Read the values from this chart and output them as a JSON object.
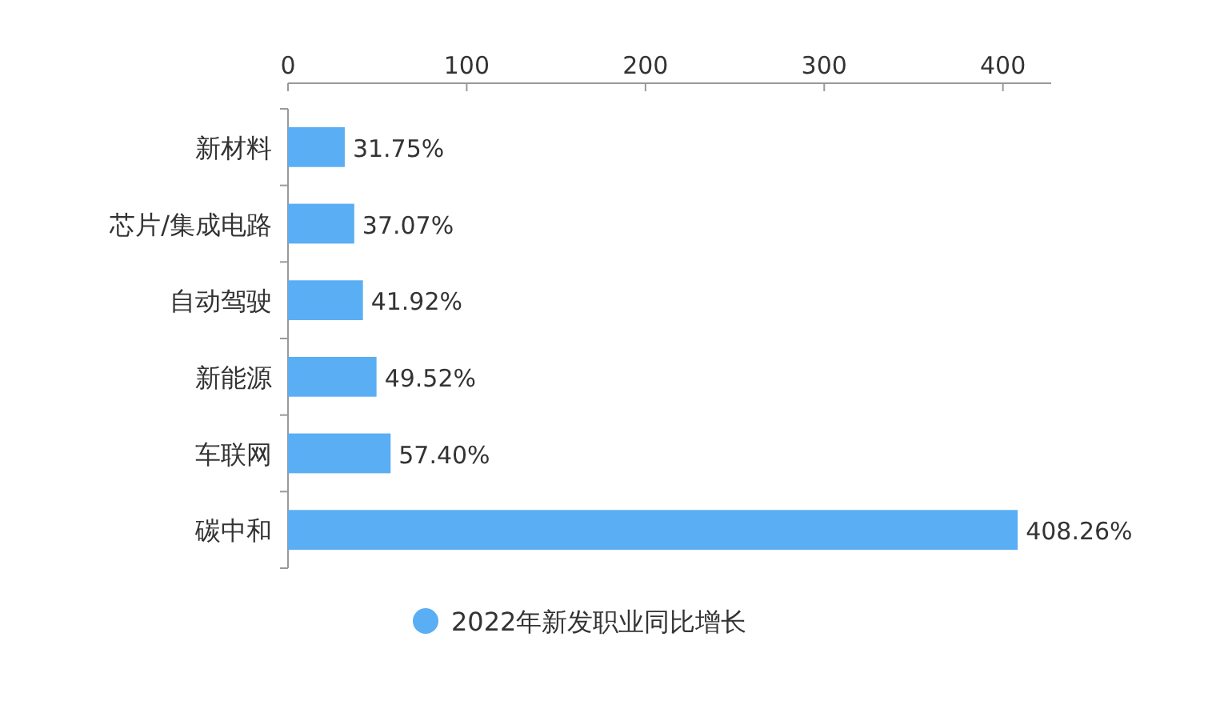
{
  "chart_data": {
    "type": "bar",
    "orientation": "horizontal",
    "categories": [
      "新材料",
      "芯片/集成电路",
      "自动驾驶",
      "新能源",
      "车联网",
      "碳中和"
    ],
    "series": [
      {
        "name": "2022年新发职业同比增长",
        "color": "#5aaef3",
        "values": [
          31.75,
          37.07,
          41.92,
          49.52,
          57.4,
          408.26
        ],
        "value_labels": [
          "31.75%",
          "37.07%",
          "41.92%",
          "49.52%",
          "57.40%",
          "408.26%"
        ]
      }
    ],
    "xlim": [
      0,
      427
    ],
    "xticks": [
      0,
      100,
      200,
      300,
      400
    ],
    "grid": false,
    "legend": "bottom"
  }
}
